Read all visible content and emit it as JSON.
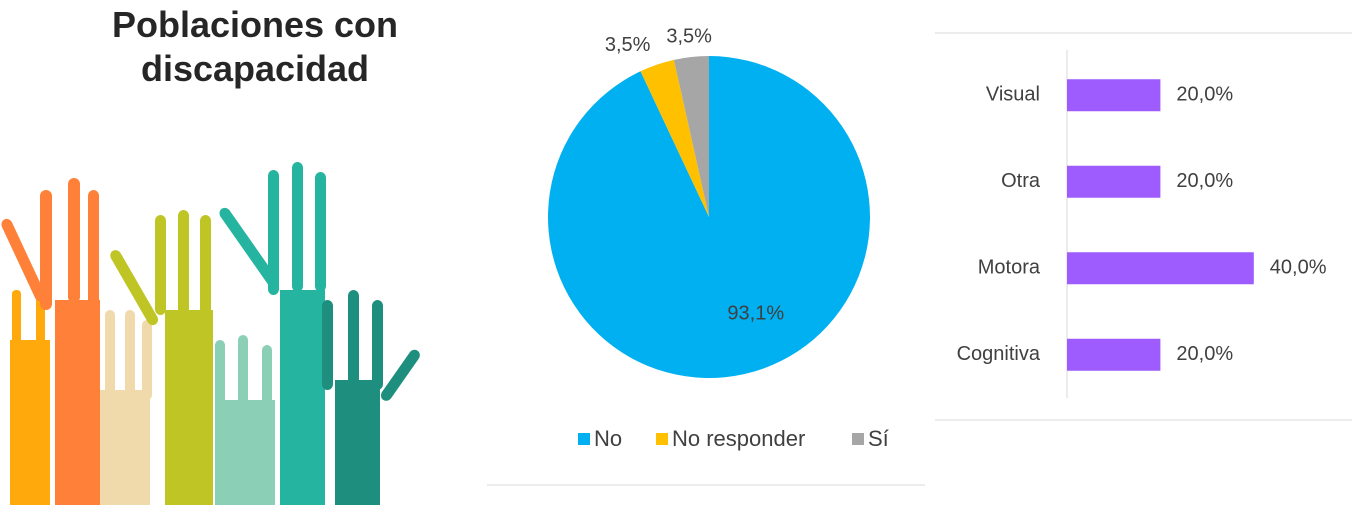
{
  "title": "Poblaciones con discapacidad",
  "chart_data": [
    {
      "type": "pie",
      "categories": [
        "No",
        "No responder",
        "Sí"
      ],
      "values": [
        93.1,
        3.5,
        3.5
      ],
      "value_labels": [
        "93,1%",
        "3,5%",
        "3,5%"
      ],
      "colors": [
        "#00b0f0",
        "#ffc000",
        "#a6a6a6"
      ],
      "legend": "bottom"
    },
    {
      "type": "hbar",
      "categories": [
        "Visual",
        "Otra",
        "Motora",
        "Cognitiva"
      ],
      "values": [
        20,
        20,
        40,
        20
      ],
      "value_labels": [
        "20,0%",
        "20,0%",
        "40,0%",
        "20,0%"
      ],
      "color": "#9e5cff",
      "xlim": [
        0,
        50
      ]
    }
  ]
}
